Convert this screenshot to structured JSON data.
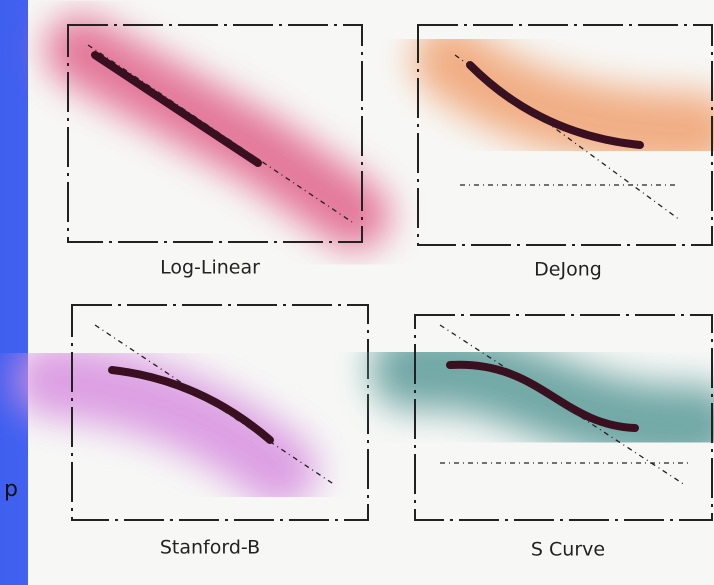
{
  "panels": [
    {
      "label": "Log-Linear"
    },
    {
      "label": "DeJong"
    },
    {
      "label": "Stanford-B"
    },
    {
      "label": "S Curve"
    }
  ],
  "side_text": "p"
}
